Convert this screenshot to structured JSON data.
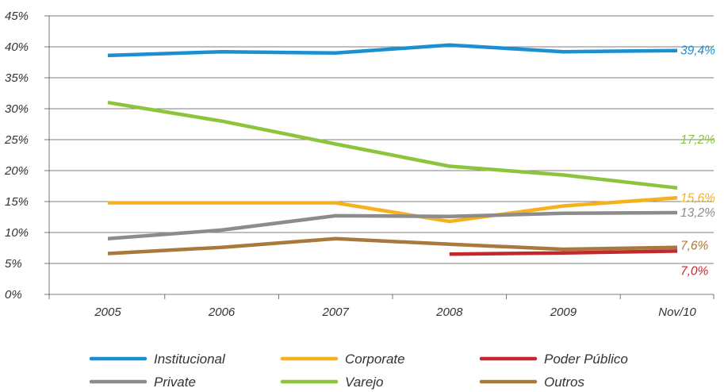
{
  "chart_data": {
    "type": "line",
    "title": "",
    "xlabel": "",
    "ylabel": "",
    "categories": [
      "2005",
      "2006",
      "2007",
      "2008",
      "2009",
      "Nov/10"
    ],
    "ylim": [
      0,
      45
    ],
    "yticks": [
      0,
      5,
      10,
      15,
      20,
      25,
      30,
      35,
      40,
      45
    ],
    "ytick_labels": [
      "0%",
      "5%",
      "10%",
      "15%",
      "20%",
      "25%",
      "30%",
      "35%",
      "40%",
      "45%"
    ],
    "grid": "horizontal",
    "legend_position": "bottom",
    "series": [
      {
        "name": "Institucional",
        "color": "#1b8fd2",
        "values": [
          38.6,
          39.2,
          39.0,
          40.3,
          39.2,
          39.4
        ],
        "end_label": "39,4%"
      },
      {
        "name": "Corporate",
        "color": "#f5b21e",
        "values": [
          14.8,
          14.8,
          14.8,
          11.8,
          14.3,
          15.6
        ],
        "end_label": "15,6%"
      },
      {
        "name": "Poder Público",
        "color": "#c4282c",
        "values": [
          null,
          null,
          null,
          6.5,
          6.7,
          7.0
        ],
        "end_label": "7,0%"
      },
      {
        "name": "Private",
        "color": "#8c8c8c",
        "values": [
          9.0,
          10.4,
          12.7,
          12.6,
          13.1,
          13.2
        ],
        "end_label": "13,2%"
      },
      {
        "name": "Varejo",
        "color": "#8cc43c",
        "values": [
          31.0,
          28.0,
          24.3,
          20.7,
          19.3,
          17.2
        ],
        "end_label": "17,2%"
      },
      {
        "name": "Outros",
        "color": "#a8783c",
        "values": [
          6.6,
          7.6,
          9.0,
          8.1,
          7.3,
          7.6
        ],
        "end_label": "7,6%"
      }
    ],
    "legend_order": [
      "Institucional",
      "Corporate",
      "Poder Público",
      "Private",
      "Varejo",
      "Outros"
    ]
  }
}
